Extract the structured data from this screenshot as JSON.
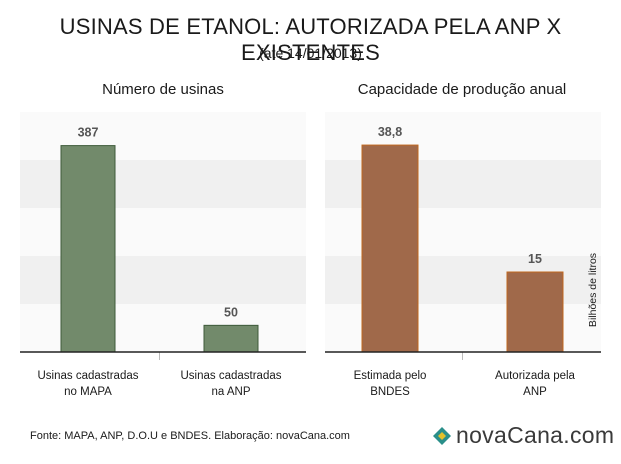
{
  "title": "USINAS DE ETANOL: AUTORIZADA PELA ANP X EXISTENTES",
  "subtitle": "(até 14/01/2013)",
  "source": "Fonte: MAPA, ANP, D.O.U e BNDES. Elaboração: novaCana.com",
  "logo_text": "novaCana.com",
  "colors": {
    "green_bar": "#728a6b",
    "green_border": "#3e5a3a",
    "brown_bar": "#a0694a",
    "brown_border": "#c0681f",
    "band_dark": "#f0f0f0",
    "band_light": "#fafafa",
    "logo_teal": "#2a8f8a",
    "logo_yellow": "#e3c12a"
  },
  "chart_data": [
    {
      "type": "bar",
      "title": "Número de usinas",
      "categories": [
        "Usinas cadastradas no MAPA",
        "Usinas cadastradas na ANP"
      ],
      "category_lines": [
        [
          "Usinas cadastradas",
          "no MAPA"
        ],
        [
          "Usinas cadastradas",
          "na ANP"
        ]
      ],
      "values": [
        387,
        50
      ],
      "value_labels": [
        "387",
        "50"
      ],
      "ylabel": "",
      "ylim": [
        0,
        450
      ],
      "grid": "alternating bands",
      "color": "green"
    },
    {
      "type": "bar",
      "title": "Capacidade de produção anual",
      "categories": [
        "Estimada pelo BNDES",
        "Autorizada pela ANP"
      ],
      "category_lines": [
        [
          "Estimada pelo",
          "BNDES"
        ],
        [
          "Autorizada pela",
          "ANP"
        ]
      ],
      "values": [
        38.8,
        15
      ],
      "value_labels": [
        "38,8",
        "15"
      ],
      "ylabel": "Bilhões de litros",
      "ylim": [
        0,
        45
      ],
      "grid": "alternating bands",
      "color": "brown"
    }
  ]
}
